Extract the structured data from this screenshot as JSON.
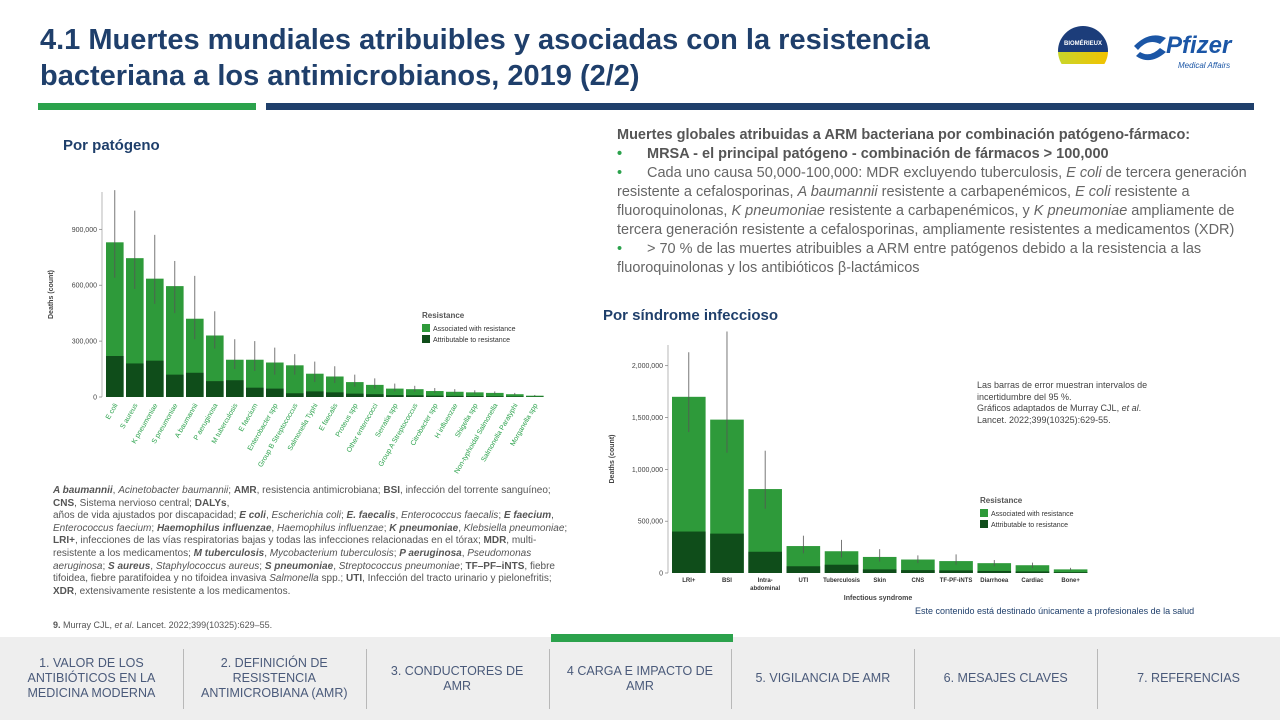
{
  "header": {
    "title": "4.1 Muertes mundiales atribuibles y asociadas con la resistencia bacteriana a los antimicrobianos, 2019 (2/2)",
    "logo_biomerieux": "BIOMÉRIEUX",
    "logo_pfizer": "Pfizer",
    "logo_pfizer_sub": "Medical Affairs"
  },
  "left": {
    "section_title": "Por patógeno",
    "abbreviations_html": "<b><i>A baumannii</i></b>, <i>Acinetobacter baumannii</i>; <b>AMR</b>, resistencia antimicrobiana; <b>BSI</b>, infección del torrente sanguíneo; <b>CNS</b>, Sistema nervioso central; <b>DALYs</b>,<br>años de vida ajustados por discapacidad; <b><i>E coli</i></b>, <i>Escherichia coli</i>; <b><i>E. faecalis</i></b>, <i>Enterococcus faecalis</i>; <b><i>E faecium</i></b>, <i>Enterococcus faecium</i>; <b><i>Haemophilus influenzae</i></b>, <i>Haemophilus influenzae</i>; <b><i>K pneumoniae</i></b>, <i>Klebsiella pneumoniae</i>; <b>LRI+</b>, infecciones de las vías respiratorias bajas y todas las infecciones relacionadas en el tórax; <b>MDR</b>, multi-resistente a los medicamentos; <b><i>M tuberculosis</i></b>, <i>Mycobacterium tuberculosis</i>; <b><i>P aeruginosa</i></b>, <i>Pseudomonas aeruginosa</i>; <b><i>S aureus</i></b>, <i>Staphylococcus aureus</i>; <b><i>S pneumoniae</i></b>, <i>Streptococcus pneumoniae</i>; <b>TF–PF–iNTS</b>, fiebre tifoidea, fiebre paratifoidea y no tifoidea invasiva <i>Salmonella</i> spp.; <b>UTI</b>, Infección del tracto urinario y pielonefritis; <b>XDR</b>, extensivamente resistente a los medicamentos.",
    "reference_html": "<b>9.</b> Murray CJL, <i>et al</i>. Lancet. 2022;399(10325):629–55."
  },
  "right": {
    "heading": "Muertes globales atribuidas a ARM bacteriana por combinación patógeno-fármaco:",
    "bullet1": "MRSA - el principal patógeno - combinación de fármacos > 100,000",
    "bullet2_html": "Cada uno causa 50,000-100,000: MDR excluyendo tuberculosis, <i>E coli</i> de tercera generación resistente a cefalosporinas, <i>A baumannii</i> resistente a carbapenémicos, <i>E coli</i> resistente a fluoroquinolonas, <i>K pneumoniae</i> resistente a carbapenémicos, y <i>K pneumoniae</i> ampliamente de tercera generación resistente a cefalosporinas, ampliamente resistentes a medicamentos (XDR)",
    "bullet3": "> 70 % de las muertes atribuibles a ARM entre patógenos debido a la resistencia a las fluoroquinolonas y los antibióticos β-lactámicos",
    "section_title": "Por síndrome infeccioso",
    "error_note_html": "Las barras de error muestran intervalos de incertidumbre del 95 %.<br>Gráficos adaptados de Murray CJL, <i>et al</i>. Lancet. 2022;399(10325):629-55.",
    "footnote": "Este contenido está destinado únicamente a profesionales de la salud"
  },
  "nav": {
    "items": [
      "1. VALOR DE LOS ANTIBIÓTICOS EN LA MEDICINA MODERNA",
      "2. DEFINICIÓN DE RESISTENCIA ANTIMICROBIANA (AMR)",
      "3. CONDUCTORES DE AMR",
      "4 CARGA E IMPACTO DE AMR",
      "5. VIGILANCIA DE AMR",
      "6. MESAJES CLAVES",
      "7. REFERENCIAS"
    ],
    "active_index": 3
  },
  "colors": {
    "title": "#1f3f6b",
    "accent_green": "#2ba24c",
    "associated": "#2e9a3a",
    "attributable": "#0f4d1a",
    "nav_text": "#4a5a7a"
  },
  "chart_data": [
    {
      "type": "bar",
      "ylabel": "Deaths (count)",
      "yticks": [
        "0",
        "300,000",
        "600,000",
        "900,000"
      ],
      "ylim": [
        0,
        1100000
      ],
      "legend_title": "Resistance",
      "legend_position": "right",
      "categories": [
        "E coli",
        "S aureus",
        "K pneumoniae",
        "S pneumoniae",
        "A baumannii",
        "P aeruginosa",
        "M tuberculosis",
        "E faecium",
        "Enterobacter spp",
        "Group B Streptococcus",
        "Salmonella Typhi",
        "E faecalis",
        "Proteus spp",
        "Other enterococci",
        "Serratia spp",
        "Group A Streptococcus",
        "Citrobacter spp",
        "H influenzae",
        "Shigella spp",
        "Non-typhoidal Salmonella",
        "Salmonella Paratyphi",
        "Morganella spp"
      ],
      "series": [
        {
          "name": "Associated with resistance",
          "values": [
            830000,
            745000,
            635000,
            595000,
            420000,
            330000,
            200000,
            200000,
            185000,
            170000,
            125000,
            110000,
            80000,
            65000,
            45000,
            42000,
            32000,
            28000,
            25000,
            22000,
            15000,
            7000
          ]
        },
        {
          "name": "Attributable to resistance",
          "values": [
            220000,
            180000,
            195000,
            120000,
            130000,
            85000,
            90000,
            50000,
            45000,
            20000,
            30000,
            25000,
            18000,
            15000,
            10000,
            9000,
            7000,
            6000,
            5000,
            4000,
            3000,
            2000
          ]
        }
      ],
      "error_high": [
        1110000,
        1000000,
        870000,
        730000,
        650000,
        460000,
        310000,
        300000,
        265000,
        230000,
        190000,
        165000,
        120000,
        100000,
        72000,
        60000,
        48000,
        42000,
        36000,
        30000,
        22000,
        11000
      ],
      "error_low": [
        640000,
        580000,
        500000,
        450000,
        310000,
        260000,
        150000,
        140000,
        120000,
        120000,
        80000,
        75000,
        55000,
        45000,
        30000,
        28000,
        22000,
        19000,
        17000,
        15000,
        10000,
        5000
      ]
    },
    {
      "type": "bar",
      "xlabel": "Infectious syndrome",
      "ylabel": "Deaths (count)",
      "yticks": [
        "0",
        "500,000",
        "1,000,000",
        "1,500,000",
        "2,000,000"
      ],
      "ylim": [
        0,
        2200000
      ],
      "legend_title": "Resistance",
      "legend_position": "right",
      "categories": [
        "LRI+",
        "BSI",
        "Intra-abdominal",
        "UTI",
        "Tuberculosis",
        "Skin",
        "CNS",
        "TF-PF-iNTS",
        "Diarrhoea",
        "Cardiac",
        "Bone+"
      ],
      "series": [
        {
          "name": "Associated with resistance",
          "values": [
            1700000,
            1480000,
            810000,
            260000,
            210000,
            155000,
            130000,
            115000,
            95000,
            75000,
            35000
          ]
        },
        {
          "name": "Attributable to resistance",
          "values": [
            400000,
            380000,
            205000,
            65000,
            80000,
            35000,
            28000,
            25000,
            20000,
            15000,
            8000
          ]
        }
      ],
      "error_high": [
        2130000,
        2330000,
        1180000,
        360000,
        320000,
        230000,
        170000,
        180000,
        125000,
        100000,
        50000
      ],
      "error_low": [
        1360000,
        1160000,
        620000,
        190000,
        150000,
        110000,
        95000,
        80000,
        65000,
        50000,
        25000
      ]
    }
  ]
}
